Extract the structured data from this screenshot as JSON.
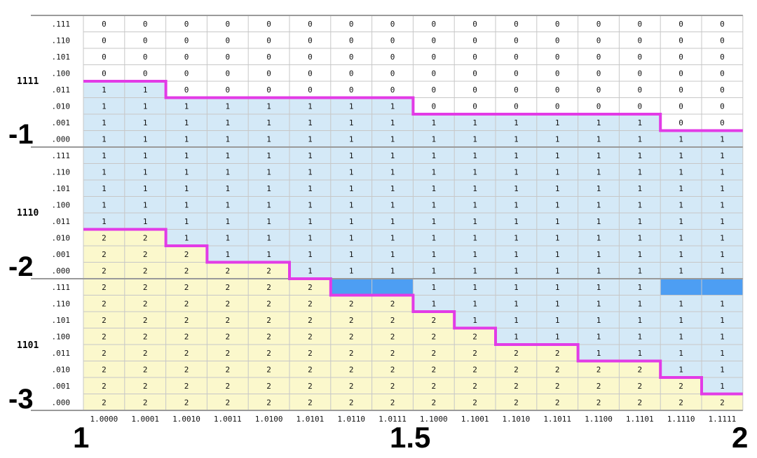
{
  "diagram": {
    "columns": [
      "1.0000",
      "1.0001",
      "1.0010",
      "1.0011",
      "1.0100",
      "1.0101",
      "1.0110",
      "1.0111",
      "1.1000",
      "1.1001",
      "1.1010",
      "1.1011",
      "1.1100",
      "1.1101",
      "1.1110",
      "1.1111"
    ],
    "row_suffixes": [
      ".111",
      ".110",
      ".101",
      ".100",
      ".011",
      ".010",
      ".001",
      ".000"
    ],
    "groups": [
      {
        "label": "1111",
        "exp_label": "-1"
      },
      {
        "label": "1110",
        "exp_label": "-2"
      },
      {
        "label": "1101",
        "exp_label": "-3"
      }
    ],
    "bottom_labels": {
      "left": "1",
      "mid": "1.5",
      "right": "2"
    },
    "rows": [
      "0000000000000000",
      "0000000000000000",
      "0000000000000000",
      "0000000000000000",
      "1100000000000000",
      "1111111100000000",
      "1111111111111100",
      "1111111111111111",
      "1111111111111111",
      "1111111111111111",
      "1111111111111111",
      "1111111111111111",
      "1111111111111111",
      "2211111111111111",
      "2221111111111111",
      "2222211111111111",
      "222222__111111__",
      "2222222211111111",
      "2222222221111111",
      "2222222222111111",
      "2222222222221111",
      "2222222222222211",
      "2222222222222221",
      "2222222222222222"
    ],
    "colors": {
      "zero": "#ffffff",
      "one": "#d4e9f7",
      "two": "#fbf8cc",
      "highlight": "#4d9ef3",
      "boundary": "#e23be6",
      "grid": "#c7c7c7",
      "group_sep": "#9a9a9a"
    }
  }
}
